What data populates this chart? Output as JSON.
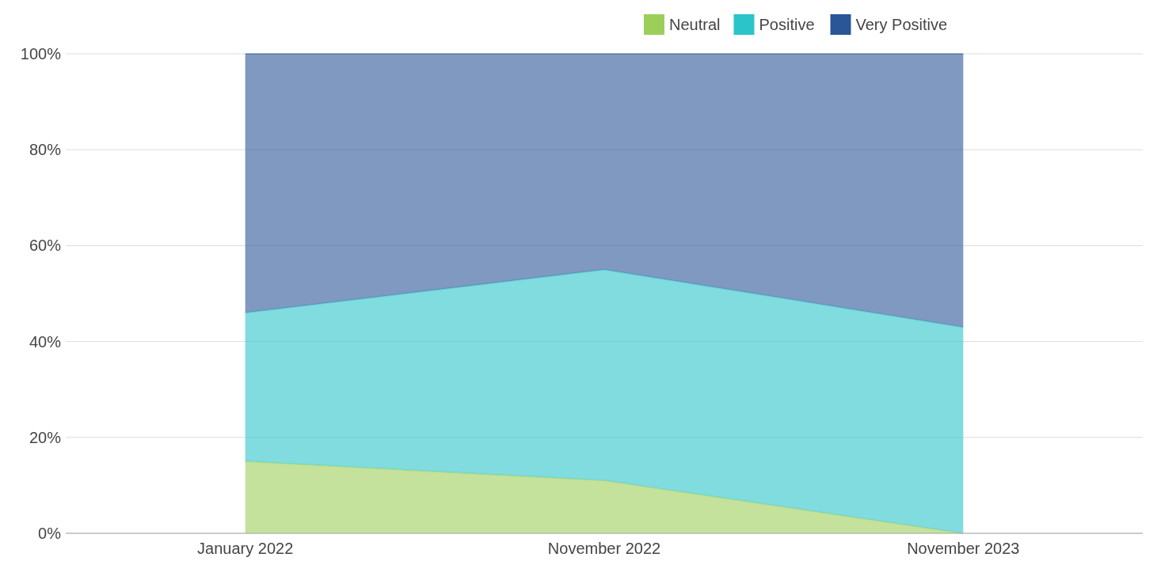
{
  "chart_data": {
    "type": "area",
    "stacked": true,
    "categories": [
      "January 2022",
      "November 2022",
      "November 2023"
    ],
    "series": [
      {
        "name": "Neutral",
        "color": "#9ccf5a",
        "values": [
          15,
          11,
          0
        ]
      },
      {
        "name": "Positive",
        "color": "#2bc4c9",
        "values": [
          31,
          44,
          43
        ]
      },
      {
        "name": "Very Positive",
        "color": "#2a5597",
        "values": [
          54,
          45,
          57
        ]
      }
    ],
    "ylim": [
      0,
      100
    ],
    "yticks": [
      {
        "value": 0,
        "label": "0%"
      },
      {
        "value": 20,
        "label": "20%"
      },
      {
        "value": 40,
        "label": "40%"
      },
      {
        "value": 60,
        "label": "60%"
      },
      {
        "value": 80,
        "label": "80%"
      },
      {
        "value": 100,
        "label": "100%"
      }
    ],
    "grid": "y",
    "legend": "top"
  }
}
